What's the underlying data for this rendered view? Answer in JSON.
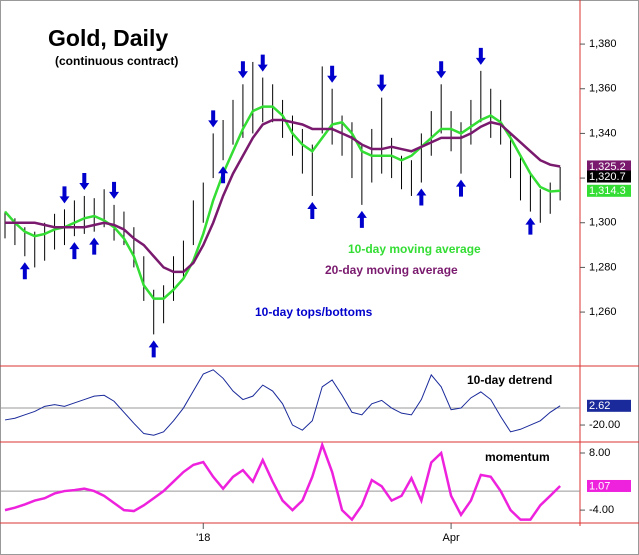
{
  "chart_data": [
    {
      "type": "ohlc",
      "title": "Gold, Daily",
      "subtitle": "(continuous contract)",
      "x": [
        0,
        2,
        4,
        6,
        8,
        10,
        12,
        14,
        16,
        18,
        20,
        22,
        24,
        26,
        28,
        30,
        32,
        34,
        36,
        38,
        40,
        42,
        44,
        46,
        48,
        50,
        52,
        54,
        56,
        58,
        60,
        62,
        64,
        66,
        68,
        70,
        72,
        74,
        76,
        78,
        80,
        82,
        84,
        86,
        88,
        90,
        92,
        94,
        96,
        98,
        100,
        102,
        104,
        106,
        108,
        110,
        112
      ],
      "high": [
        1305,
        1302,
        1298,
        1296,
        1300,
        1304,
        1306,
        1310,
        1312,
        1311,
        1315,
        1308,
        1305,
        1298,
        1285,
        1270,
        1272,
        1285,
        1292,
        1310,
        1318,
        1340,
        1346,
        1355,
        1362,
        1372,
        1365,
        1362,
        1355,
        1348,
        1342,
        1335,
        1370,
        1360,
        1348,
        1345,
        1335,
        1342,
        1356,
        1338,
        1330,
        1328,
        1340,
        1350,
        1362,
        1350,
        1345,
        1355,
        1368,
        1360,
        1355,
        1340,
        1330,
        1322,
        1315,
        1318,
        1325
      ],
      "low": [
        1293,
        1290,
        1285,
        1280,
        1283,
        1288,
        1290,
        1294,
        1295,
        1296,
        1298,
        1292,
        1290,
        1280,
        1265,
        1250,
        1255,
        1265,
        1275,
        1290,
        1300,
        1320,
        1328,
        1335,
        1338,
        1340,
        1345,
        1345,
        1338,
        1330,
        1322,
        1312,
        1340,
        1335,
        1330,
        1320,
        1308,
        1318,
        1322,
        1320,
        1315,
        1312,
        1318,
        1330,
        1340,
        1332,
        1322,
        1335,
        1345,
        1338,
        1335,
        1320,
        1310,
        1305,
        1300,
        1304,
        1310
      ],
      "color": "#000000",
      "last_close": {
        "value": 1320.7,
        "label": "1,320.7"
      },
      "series": [
        {
          "name": "10-day moving average",
          "color": "#33dd33",
          "last_label": "1,314.3",
          "values": [
            1305,
            1300,
            1296,
            1294,
            1295,
            1297,
            1298,
            1300,
            1302,
            1303,
            1301,
            1298,
            1293,
            1285,
            1272,
            1266,
            1266,
            1270,
            1275,
            1283,
            1295,
            1310,
            1322,
            1332,
            1342,
            1350,
            1352,
            1352,
            1348,
            1340,
            1335,
            1332,
            1338,
            1344,
            1345,
            1340,
            1332,
            1330,
            1330,
            1330,
            1328,
            1330,
            1334,
            1338,
            1342,
            1342,
            1340,
            1343,
            1346,
            1348,
            1345,
            1338,
            1330,
            1322,
            1316,
            1314,
            1314.3
          ]
        },
        {
          "name": "20-day moving average",
          "color": "#7a1a6e",
          "last_label": "1,325.2",
          "values": [
            1300,
            1300,
            1300,
            1300,
            1299,
            1298,
            1298,
            1298,
            1298,
            1299,
            1300,
            1299,
            1297,
            1293,
            1290,
            1285,
            1280,
            1278,
            1278,
            1282,
            1290,
            1300,
            1312,
            1322,
            1330,
            1338,
            1344,
            1346,
            1346,
            1345,
            1344,
            1342,
            1342,
            1342,
            1340,
            1338,
            1335,
            1333,
            1333,
            1334,
            1333,
            1332,
            1334,
            1336,
            1338,
            1338,
            1338,
            1340,
            1343,
            1345,
            1344,
            1340,
            1336,
            1332,
            1328,
            1326,
            1325.2
          ]
        }
      ],
      "annotation": "10-day tops/bottoms",
      "annotation_color": "#0000cc",
      "tops": [
        12,
        16,
        22,
        42,
        48,
        52,
        66,
        76,
        88,
        96
      ],
      "bottoms": [
        4,
        14,
        18,
        30,
        44,
        62,
        72,
        84,
        92,
        106
      ],
      "ylim": [
        1236.3,
        1397.5
      ],
      "yticks": [
        {
          "value": 1260,
          "label": "1,260"
        },
        {
          "value": 1280,
          "label": "1,280"
        },
        {
          "value": 1300,
          "label": "1,300"
        },
        {
          "value": 1320,
          "label": "1,320"
        },
        {
          "value": 1340,
          "label": "1,340"
        },
        {
          "value": 1360,
          "label": "1,360"
        },
        {
          "value": 1380,
          "label": "1,380"
        }
      ]
    },
    {
      "type": "line",
      "title": "10-day detrend",
      "series": [
        {
          "name": "10-day detrend",
          "color": "#1a2a9a",
          "last_label": "2.62",
          "values": [
            -14,
            -12,
            -8,
            -4,
            2,
            4,
            2,
            6,
            10,
            14,
            15,
            8,
            -5,
            -18,
            -30,
            -32,
            -28,
            -15,
            0,
            20,
            40,
            45,
            35,
            20,
            10,
            14,
            27,
            20,
            5,
            -20,
            -26,
            -15,
            25,
            33,
            15,
            -5,
            -8,
            5,
            9,
            0,
            -6,
            -8,
            10,
            39,
            25,
            -2,
            0,
            12,
            19,
            10,
            -10,
            -28,
            -25,
            -20,
            -15,
            -5,
            2.62
          ]
        }
      ],
      "ylim": [
        -37.6,
        47.1
      ],
      "yticks": [
        {
          "value": -20,
          "label": "-20.00"
        }
      ],
      "baseline": 0
    },
    {
      "type": "line",
      "title": "momentum",
      "series": [
        {
          "name": "momentum",
          "color": "#ee22dd",
          "last_label": "1.07",
          "values": [
            -4,
            -3.5,
            -2.8,
            -2,
            -1.5,
            -0.5,
            0,
            0.2,
            0.5,
            0,
            -1,
            -2.5,
            -4,
            -4.2,
            -3,
            -1.5,
            0,
            2,
            4,
            5.5,
            6.1,
            3,
            0.5,
            3,
            4.4,
            2,
            6.5,
            2,
            -2,
            -4,
            -2,
            3,
            9.7,
            4,
            -4,
            -6,
            -3,
            2.3,
            1,
            -2,
            -1,
            2.7,
            -2,
            6,
            8,
            -1,
            -5,
            -2,
            3.4,
            3,
            0,
            -4,
            -6,
            -6,
            -3,
            -1,
            1.07
          ]
        }
      ],
      "ylim": [
        -6.5,
        10.1
      ],
      "yticks": [
        {
          "value": 8,
          "label": "8.00"
        },
        {
          "value": -4,
          "label": "-4.00"
        }
      ],
      "baseline": 0,
      "xlim": [
        0,
        115
      ],
      "xticks": [
        {
          "value": 40,
          "label": "'18"
        },
        {
          "value": 90,
          "label": "Apr"
        }
      ]
    }
  ]
}
